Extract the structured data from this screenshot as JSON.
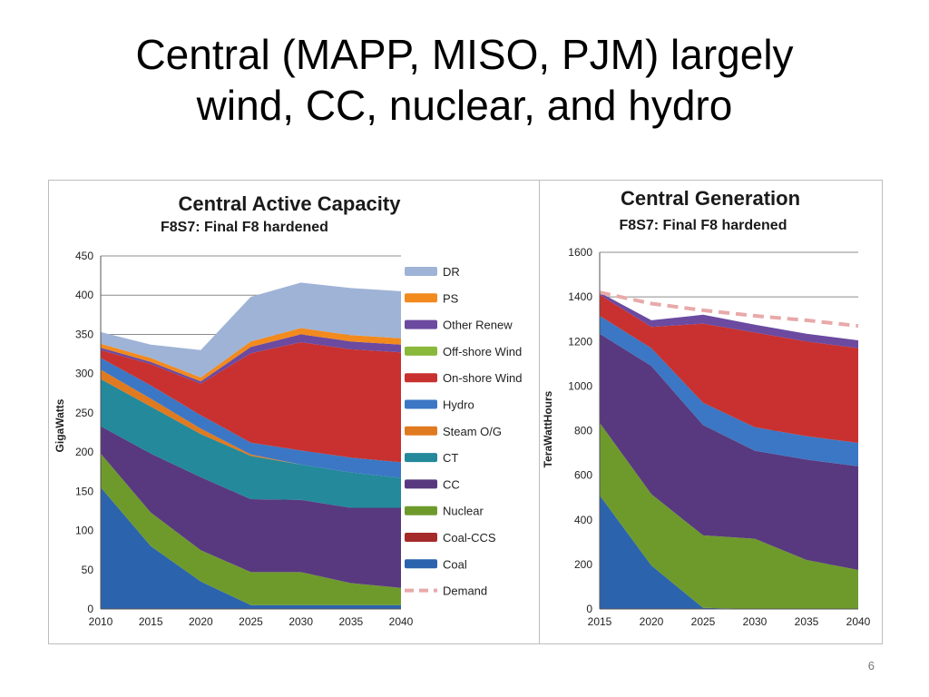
{
  "slide": {
    "title_line1": "Central (MAPP, MISO, PJM) largely",
    "title_line2": "wind, CC, nuclear, and hydro",
    "page_number": "6"
  },
  "colors": {
    "Coal": "#2c63ad",
    "Coal-CCS": "#a52a2a",
    "Nuclear": "#6e9a2c",
    "CC": "#58397f",
    "CT": "#23899b",
    "Steam O/G": "#e07a20",
    "Hydro": "#3b77c4",
    "On-shore Wind": "#c8312f",
    "Off-shore Wind": "#8ab83a",
    "Other Renew": "#6b4aa0",
    "PS": "#f28a1e",
    "DR": "#9fb3d6",
    "Demand": "#e8a9a9"
  },
  "chart_data": [
    {
      "type": "area",
      "title": "Central Active Capacity",
      "subtitle": "F8S7: Final F8 hardened",
      "ylabel": "GigaWatts",
      "xlabel": "",
      "x": [
        2010,
        2015,
        2020,
        2025,
        2030,
        2035,
        2040
      ],
      "ylim": [
        0,
        450
      ],
      "yticks": [
        0,
        50,
        100,
        150,
        200,
        250,
        300,
        350,
        400,
        450
      ],
      "grid": true,
      "stacked": true,
      "series": [
        {
          "name": "Coal",
          "values": [
            155,
            80,
            35,
            5,
            5,
            5,
            5
          ]
        },
        {
          "name": "Coal-CCS",
          "values": [
            0,
            0,
            0,
            0,
            0,
            0,
            0
          ]
        },
        {
          "name": "Nuclear",
          "values": [
            43,
            43,
            40,
            42,
            42,
            28,
            22
          ]
        },
        {
          "name": "CC",
          "values": [
            35,
            75,
            93,
            93,
            92,
            96,
            102
          ]
        },
        {
          "name": "CT",
          "values": [
            60,
            60,
            55,
            55,
            45,
            45,
            38
          ]
        },
        {
          "name": "Steam O/G",
          "values": [
            12,
            10,
            7,
            2,
            0,
            0,
            0
          ]
        },
        {
          "name": "Hydro",
          "values": [
            15,
            17,
            17,
            15,
            18,
            19,
            20
          ]
        },
        {
          "name": "On-shore Wind",
          "values": [
            10,
            27,
            40,
            114,
            138,
            138,
            140
          ]
        },
        {
          "name": "Off-shore Wind",
          "values": [
            0,
            0,
            0,
            0,
            0,
            0,
            0
          ]
        },
        {
          "name": "Other Renew",
          "values": [
            3,
            3,
            3,
            8,
            10,
            10,
            10
          ]
        },
        {
          "name": "PS",
          "values": [
            5,
            5,
            5,
            7,
            8,
            8,
            8
          ]
        },
        {
          "name": "DR",
          "values": [
            15,
            17,
            35,
            57,
            58,
            60,
            60
          ]
        }
      ],
      "legend": {
        "placement": "right",
        "entries": [
          "DR",
          "PS",
          "Other Renew",
          "Off-shore Wind",
          "On-shore Wind",
          "Hydro",
          "Steam O/G",
          "CT",
          "CC",
          "Nuclear",
          "Coal-CCS",
          "Coal",
          "Demand"
        ]
      }
    },
    {
      "type": "area",
      "title": "Central Generation",
      "subtitle": "F8S7: Final F8 hardened",
      "ylabel": "TeraWattHours",
      "xlabel": "",
      "x": [
        2015,
        2020,
        2025,
        2030,
        2035,
        2040
      ],
      "ylim": [
        0,
        1600
      ],
      "yticks": [
        0,
        200,
        400,
        600,
        800,
        1000,
        1200,
        1400,
        1600
      ],
      "grid": true,
      "stacked": true,
      "series": [
        {
          "name": "Coal",
          "values": [
            510,
            195,
            5,
            0,
            0,
            0
          ]
        },
        {
          "name": "Nuclear",
          "values": [
            325,
            320,
            325,
            315,
            220,
            175
          ]
        },
        {
          "name": "CC",
          "values": [
            400,
            575,
            495,
            395,
            450,
            465
          ]
        },
        {
          "name": "Hydro",
          "values": [
            80,
            80,
            100,
            105,
            105,
            105
          ]
        },
        {
          "name": "On-shore Wind",
          "values": [
            95,
            95,
            355,
            425,
            425,
            425
          ]
        },
        {
          "name": "Other Renew",
          "values": [
            10,
            30,
            40,
            35,
            35,
            35
          ]
        }
      ],
      "demand": [
        1420,
        1370,
        1340,
        1315,
        1295,
        1270
      ]
    }
  ]
}
